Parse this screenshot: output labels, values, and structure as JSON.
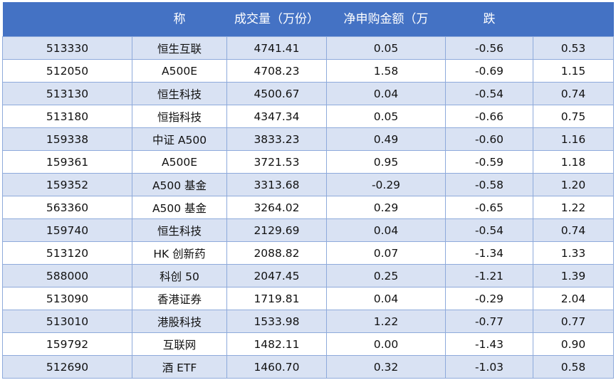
{
  "table": {
    "headers": [
      "",
      "称",
      "成交量（万份）",
      "净申购金额（万",
      "跌",
      ""
    ],
    "rows": [
      [
        "513330",
        "恒生互联",
        "4741.41",
        "0.05",
        "-0.56",
        "0.53"
      ],
      [
        "512050",
        "A500E",
        "4708.23",
        "1.58",
        "-0.69",
        "1.15"
      ],
      [
        "513130",
        "恒生科技",
        "4500.67",
        "0.04",
        "-0.54",
        "0.74"
      ],
      [
        "513180",
        "恒指科技",
        "4347.34",
        "0.05",
        "-0.66",
        "0.75"
      ],
      [
        "159338",
        "中证 A500",
        "3833.23",
        "0.49",
        "-0.60",
        "1.16"
      ],
      [
        "159361",
        "A500E",
        "3721.53",
        "0.95",
        "-0.59",
        "1.18"
      ],
      [
        "159352",
        "A500 基金",
        "3313.68",
        "-0.29",
        "-0.58",
        "1.20"
      ],
      [
        "563360",
        "A500 基金",
        "3264.02",
        "0.29",
        "-0.65",
        "1.22"
      ],
      [
        "159740",
        "恒生科技",
        "2129.69",
        "0.04",
        "-0.54",
        "0.74"
      ],
      [
        "513120",
        "HK 创新药",
        "2088.82",
        "0.07",
        "-1.34",
        "1.33"
      ],
      [
        "588000",
        "科创 50",
        "2047.45",
        "0.25",
        "-1.21",
        "1.39"
      ],
      [
        "513090",
        "香港证券",
        "1719.81",
        "0.04",
        "-0.29",
        "2.04"
      ],
      [
        "513010",
        "港股科技",
        "1533.98",
        "1.22",
        "-0.77",
        "0.77"
      ],
      [
        "159792",
        "互联网",
        "1482.11",
        "0.00",
        "-1.43",
        "0.90"
      ],
      [
        "512690",
        "酒 ETF",
        "1460.70",
        "0.32",
        "-1.03",
        "0.58"
      ]
    ]
  },
  "colors": {
    "header": "#4472c4",
    "band": "#d9e2f3",
    "border": "#8eaadb"
  }
}
